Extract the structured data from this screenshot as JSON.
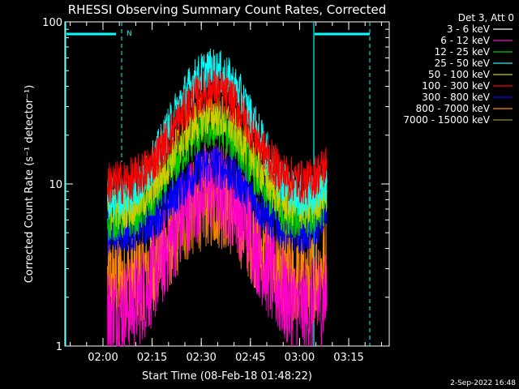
{
  "chart_data": {
    "type": "line",
    "title": "RHESSI Observing Summary Count Rates, Corrected",
    "xlabel": "Start Time (08-Feb-18 01:48:22)",
    "ylabel": "Corrected Count Rate (s⁻¹ detector⁻¹)",
    "ylim": [
      1,
      100
    ],
    "yscale": "log",
    "y_ticks": [
      "1",
      "10",
      "100"
    ],
    "x_ticks": [
      {
        "label": "02:00",
        "minutes": 11.63
      },
      {
        "label": "02:15",
        "minutes": 26.63
      },
      {
        "label": "02:30",
        "minutes": 41.63
      },
      {
        "label": "02:45",
        "minutes": 56.63
      },
      {
        "label": "03:00",
        "minutes": 71.63
      },
      {
        "label": "03:15",
        "minutes": 86.63
      }
    ],
    "x_minutes_range": [
      0,
      99
    ],
    "legend_header": "Det 3, Att 0",
    "legend_position": "right",
    "data_minutes_range": [
      13,
      80
    ],
    "peak_minutes": 45,
    "series": [
      {
        "name": "3 - 6 keV",
        "color": "#000000",
        "base": 0,
        "peak": 0
      },
      {
        "name": "6 - 12 keV",
        "color": "#ff00cc",
        "base": 1.6,
        "peak": 9.5
      },
      {
        "name": "12 - 25 keV",
        "color": "#00cc00",
        "base": 6,
        "peak": 22
      },
      {
        "name": "25 - 50 keV",
        "color": "#00ffff",
        "base": 8,
        "peak": 50
      },
      {
        "name": "50 - 100 keV",
        "color": "#cccc00",
        "base": 7,
        "peak": 27
      },
      {
        "name": "100 - 300 keV",
        "color": "#ff0000",
        "base": 10,
        "peak": 38
      },
      {
        "name": "300 - 800 keV",
        "color": "#0000ff",
        "base": 5,
        "peak": 13
      },
      {
        "name": "800 - 7000 keV",
        "color": "#ff8800",
        "base": 2.5,
        "peak": 8
      },
      {
        "name": "7000 - 15000 keV",
        "color": "#aa8800",
        "base": 0,
        "peak": 0
      }
    ],
    "flags": [
      {
        "label": "N",
        "color": "#00ffff"
      }
    ]
  },
  "footer": {
    "date": "2-Sep-2022 16:48"
  }
}
